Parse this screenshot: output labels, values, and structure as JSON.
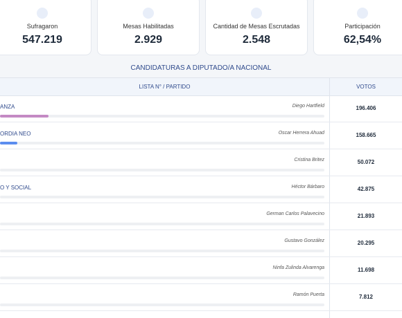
{
  "cards": [
    {
      "label": "Sufragaron",
      "value": "547.219"
    },
    {
      "label": "Mesas Habilitadas",
      "value": "2.929"
    },
    {
      "label": "Cantidad de Mesas Escrutadas",
      "value": "2.548"
    },
    {
      "label": "Participación",
      "value": "62,54%"
    }
  ],
  "table": {
    "title": "CANDIDATURAS A DIPUTADO/A NACIONAL",
    "headers": [
      "LISTA N° / PARTIDO",
      "VOTOS"
    ],
    "rows": [
      {
        "party": "ANZA",
        "candidate": "Diego Hartfield",
        "votes": "196.406"
      },
      {
        "party": "ORDIA NEO",
        "candidate": "Oscar Herrera Ahuad",
        "votes": "158.665"
      },
      {
        "candidate": "Cristina Britez",
        "votes": "50.072"
      },
      {
        "party": "O Y SOCIAL",
        "candidate": "Héctor Bárbaro",
        "votes": "42.875"
      },
      {
        "candidate": "German Carlos Palavecino",
        "votes": "21.893"
      },
      {
        "candidate": "Gustavo González",
        "votes": "20.295"
      },
      {
        "candidate": "Ninfa Zulinda Alvarenga",
        "votes": "11.698"
      },
      {
        "candidate": "Ramón Puerta",
        "votes": "7.812"
      }
    ]
  }
}
